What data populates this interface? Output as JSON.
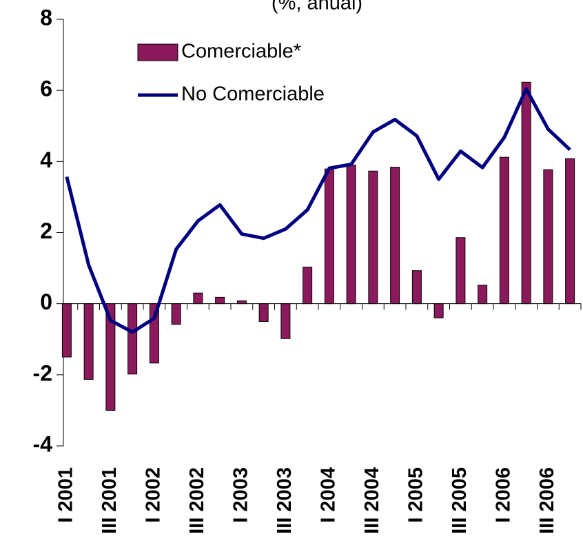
{
  "chart_data": {
    "type": "bar_line",
    "title": "(%, anual)",
    "categories": [
      "I 2001",
      null,
      "III 2001",
      null,
      "I 2002",
      null,
      "III 2002",
      null,
      "I 2003",
      null,
      "III 2003",
      null,
      "I 2004",
      null,
      "III 2004",
      null,
      "I 2005",
      null,
      "III 2005",
      null,
      "I 2006",
      null,
      "III 2006",
      null
    ],
    "series": [
      {
        "name": "Comerciable*",
        "type": "bar",
        "color": "#8b1a5c",
        "values": [
          -1.5,
          -2.13,
          -3.0,
          -1.98,
          -1.67,
          -0.58,
          0.3,
          0.18,
          0.08,
          -0.5,
          -0.98,
          1.03,
          3.79,
          3.9,
          3.73,
          3.84,
          0.93,
          -0.4,
          1.86,
          0.52,
          4.12,
          6.23,
          3.77,
          4.08
        ]
      },
      {
        "name": "No Comerciable",
        "type": "line",
        "color": "#000080",
        "values": [
          3.57,
          1.09,
          -0.47,
          -0.8,
          -0.41,
          1.53,
          2.33,
          2.78,
          1.96,
          1.84,
          2.1,
          2.64,
          3.81,
          3.92,
          4.83,
          5.18,
          4.72,
          3.5,
          4.29,
          3.83,
          4.68,
          6.04,
          4.91,
          4.33
        ]
      }
    ],
    "ylim": [
      -4,
      8
    ],
    "yticks": [
      -4,
      -2,
      0,
      2,
      4,
      6,
      8
    ]
  }
}
